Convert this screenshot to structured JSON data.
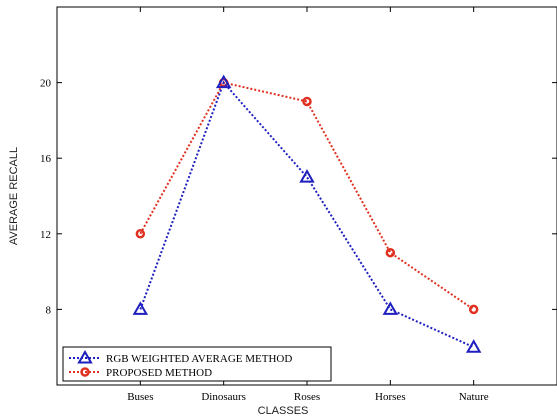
{
  "chart_data": {
    "type": "line",
    "title": "",
    "xlabel": "CLASSES",
    "ylabel": "AVERAGE RECALL",
    "categories": [
      "Buses",
      "Dinosaurs",
      "Roses",
      "Horses",
      "Nature"
    ],
    "ylim": [
      4,
      24
    ],
    "yticks": [
      "8",
      "12",
      "16",
      "20"
    ],
    "grid": false,
    "legend_position": "bottom-left",
    "series": [
      {
        "name": "RGB WEIGHTED AVERAGE METHOD",
        "values": [
          8,
          20,
          15,
          8,
          6
        ],
        "color": "#1f1fbf",
        "marker": "triangle",
        "line_style": "dotted"
      },
      {
        "name": "PROPOSED METHOD",
        "values": [
          12,
          20,
          19,
          11,
          8
        ],
        "color": "#e03020",
        "marker": "circle",
        "line_style": "dotted"
      }
    ]
  }
}
